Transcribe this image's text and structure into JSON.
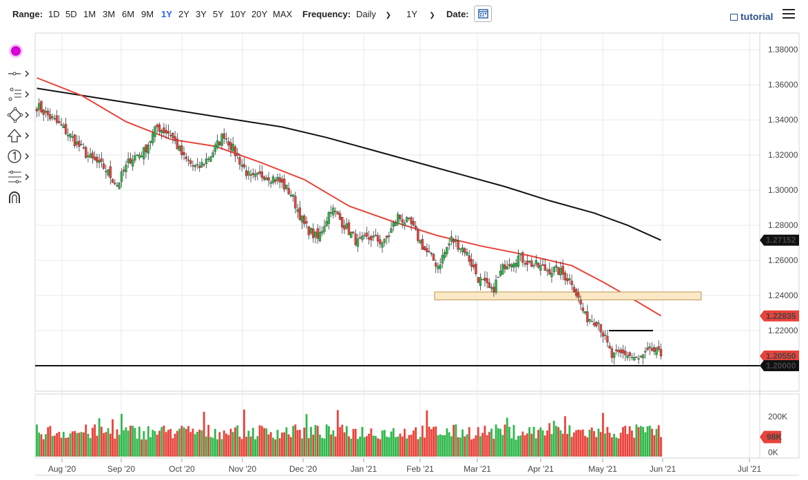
{
  "toolbar": {
    "range_label": "Range:",
    "ranges": [
      "1D",
      "5D",
      "1M",
      "3M",
      "6M",
      "9M",
      "1Y",
      "2Y",
      "3Y",
      "5Y",
      "10Y",
      "20Y",
      "MAX"
    ],
    "active_range": "1Y",
    "frequency_label": "Frequency:",
    "frequency_value": "Daily",
    "period_value": "1Y",
    "date_label": "Date:",
    "tutorial_label": "tutorial"
  },
  "sidebar": {
    "tools": [
      "color-picker-icon",
      "crosshair-tool-icon",
      "trend-line-tool-icon",
      "shape-tool-icon",
      "arrow-tool-icon",
      "annotation-number-icon",
      "fibonacci-tool-icon",
      "magnet-icon"
    ]
  },
  "colors": {
    "up": "#2fb84a",
    "down": "#e8433a",
    "ma_fast": "#e8433a",
    "ma_slow": "#111111",
    "zone_fill": "#fbe9c6",
    "zone_border": "#c9a36a",
    "picker": "#d600d6"
  },
  "chart_data": {
    "type": "candlestick",
    "x_ticks": [
      "Aug '20",
      "Sep '20",
      "Oct '20",
      "Nov '20",
      "Dec '20",
      "Jan '21",
      "Feb '21",
      "Mar '21",
      "Apr '21",
      "May '21",
      "Jun '21",
      "Jul '21"
    ],
    "y_ticks": [
      "1.38000",
      "1.36000",
      "1.34000",
      "1.32000",
      "1.30000",
      "1.28000",
      "1.26000",
      "1.24000",
      "1.22000",
      "1.20000"
    ],
    "ylim": [
      1.1855,
      1.3895
    ],
    "start_close": 1.348,
    "close_waypoints": [
      [
        0,
        1.348
      ],
      [
        12,
        1.335
      ],
      [
        24,
        1.318
      ],
      [
        30,
        1.313
      ],
      [
        36,
        1.303
      ],
      [
        42,
        1.318
      ],
      [
        48,
        1.322
      ],
      [
        54,
        1.336
      ],
      [
        60,
        1.332
      ],
      [
        66,
        1.318
      ],
      [
        72,
        1.312
      ],
      [
        78,
        1.32
      ],
      [
        84,
        1.332
      ],
      [
        90,
        1.319
      ],
      [
        96,
        1.306
      ],
      [
        102,
        1.309
      ],
      [
        108,
        1.306
      ],
      [
        114,
        1.298
      ],
      [
        120,
        1.28
      ],
      [
        126,
        1.272
      ],
      [
        132,
        1.29
      ],
      [
        138,
        1.28
      ],
      [
        144,
        1.27
      ],
      [
        150,
        1.273
      ],
      [
        156,
        1.27
      ],
      [
        162,
        1.285
      ],
      [
        168,
        1.28
      ],
      [
        174,
        1.266
      ],
      [
        180,
        1.257
      ],
      [
        186,
        1.272
      ],
      [
        192,
        1.266
      ],
      [
        198,
        1.25
      ],
      [
        204,
        1.242
      ],
      [
        210,
        1.258
      ],
      [
        216,
        1.262
      ],
      [
        222,
        1.258
      ],
      [
        228,
        1.255
      ],
      [
        234,
        1.254
      ],
      [
        240,
        1.248
      ],
      [
        246,
        1.228
      ],
      [
        252,
        1.225
      ],
      [
        258,
        1.205
      ],
      [
        264,
        1.207
      ],
      [
        270,
        1.203
      ],
      [
        276,
        1.209
      ],
      [
        280,
        1.2055
      ]
    ],
    "ma_fast_last": 1.22835,
    "ma_slow_last": 1.27152,
    "ma_fast_points": [
      [
        0,
        1.364
      ],
      [
        20,
        1.354
      ],
      [
        40,
        1.339
      ],
      [
        60,
        1.329
      ],
      [
        80,
        1.325
      ],
      [
        100,
        1.316
      ],
      [
        120,
        1.306
      ],
      [
        140,
        1.291
      ],
      [
        160,
        1.282
      ],
      [
        180,
        1.274
      ],
      [
        200,
        1.268
      ],
      [
        220,
        1.263
      ],
      [
        240,
        1.257
      ],
      [
        255,
        1.247
      ],
      [
        270,
        1.236
      ],
      [
        280,
        1.2284
      ]
    ],
    "ma_slow_points": [
      [
        0,
        1.358
      ],
      [
        30,
        1.352
      ],
      [
        60,
        1.346
      ],
      [
        90,
        1.34
      ],
      [
        110,
        1.336
      ],
      [
        130,
        1.33
      ],
      [
        150,
        1.323
      ],
      [
        170,
        1.316
      ],
      [
        190,
        1.309
      ],
      [
        210,
        1.302
      ],
      [
        230,
        1.294
      ],
      [
        250,
        1.287
      ],
      [
        265,
        1.28
      ],
      [
        280,
        1.2715
      ]
    ],
    "price_labels": [
      "1.27152",
      "1.22835",
      "1.20550",
      "1.20000"
    ],
    "volume": {
      "ticks": [
        "200K",
        "0K"
      ],
      "last_label": "98K",
      "max": 300000,
      "last": 98000,
      "typical": 130000
    },
    "support_level": 1.2,
    "resistance_zone": [
      1.2375,
      1.242
    ],
    "mini_resistance": 1.22
  }
}
